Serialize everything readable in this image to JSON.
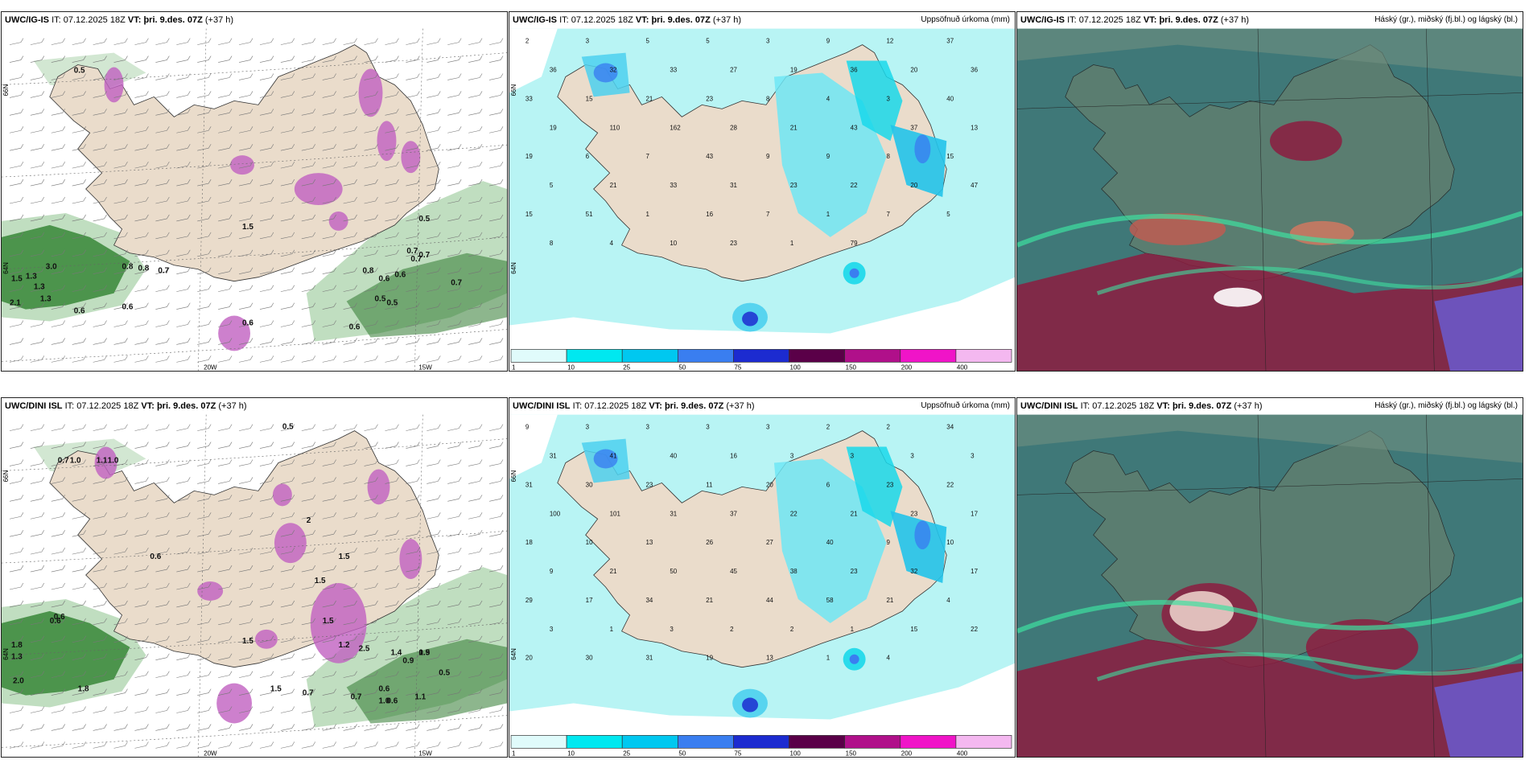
{
  "panels": [
    {
      "header": {
        "model": "UWC/IG-IS",
        "it_label": "IT:",
        "it": "07.12.2025 18Z",
        "vt_label": "VT:",
        "vt": "þri. 9.des. 07Z",
        "lead": "(+37 h)",
        "right": ""
      },
      "axis": {
        "lat_top": "66N",
        "lat_bottom": "64N",
        "lon_a": "20W",
        "lon_b": "15W"
      },
      "labels": [
        "0.5",
        "3.0",
        "1.5",
        "1.3",
        "1.3",
        "1.3",
        "0.8",
        "0.8",
        "0.7",
        "0.6",
        "2.1",
        "0.6",
        "0.7",
        "0.8",
        "0.6",
        "0.5",
        "0.7",
        "0.7",
        "0.6",
        "0.5",
        "0.6",
        "1.5",
        "0.6",
        "0.5",
        "0.7"
      ]
    },
    {
      "header": {
        "model": "UWC/IG-IS",
        "it_label": "IT:",
        "it": "07.12.2025 18Z",
        "vt_label": "VT:",
        "vt": "þri. 9.des. 07Z",
        "lead": "(+37 h)",
        "right": "Uppsöfnuð úrkoma (mm)"
      },
      "axis": {
        "lat_top": "66N",
        "lat_bottom": "64N"
      },
      "labels": [
        "2",
        "3",
        "5",
        "5",
        "3",
        "9",
        "12",
        "37",
        "36",
        "32",
        "33",
        "27",
        "19",
        "36",
        "20",
        "36",
        "33",
        "15",
        "21",
        "23",
        "8",
        "4",
        "3",
        "40",
        "19",
        "110",
        "162",
        "28",
        "21",
        "43",
        "37",
        "13",
        "19",
        "6",
        "7",
        "43",
        "9",
        "9",
        "8",
        "15",
        "5",
        "21",
        "33",
        "31",
        "23",
        "22",
        "20",
        "47",
        "15",
        "51",
        "1",
        "16",
        "7",
        "1",
        "7",
        "5",
        "8",
        "4",
        "10",
        "23",
        "1",
        "79"
      ]
    },
    {
      "header": {
        "model": "UWC/IG-IS",
        "it_label": "IT:",
        "it": "07.12.2025 18Z",
        "vt_label": "VT:",
        "vt": "þri. 9.des. 07Z",
        "lead": "(+37 h)",
        "right": "Háský (gr.), miðský (fj.bl.) og lágský (bl.)"
      }
    },
    {
      "header": {
        "model": "UWC/DINI ISL",
        "it_label": "IT:",
        "it": "07.12.2025 18Z",
        "vt_label": "VT:",
        "vt": "þri. 9.des. 07Z",
        "lead": "(+37 h)",
        "right": ""
      },
      "axis": {
        "lat_top": "66N",
        "lat_bottom": "64N",
        "lon_a": "20W",
        "lon_b": "15W"
      },
      "labels": [
        "0.5",
        "0.7",
        "1.0",
        "1.1",
        "1.0",
        "0.6",
        "0.6",
        "1.8",
        "1.3",
        "2.0",
        "1.8",
        "0.6",
        "1.5",
        "1.5",
        "2",
        "1.5",
        "0.9",
        "0.9",
        "0.6",
        "0.6",
        "0.5",
        "1.4",
        "2.5",
        "1.5",
        "0.7",
        "0.7",
        "1.0",
        "1.1",
        "1.5",
        "1.5",
        "1.2"
      ]
    },
    {
      "header": {
        "model": "UWC/DINI ISL",
        "it_label": "IT:",
        "it": "07.12.2025 18Z",
        "vt_label": "VT:",
        "vt": "þri. 9.des. 07Z",
        "lead": "(+37 h)",
        "right": "Uppsöfnuð úrkoma (mm)"
      },
      "axis": {
        "lat_top": "66N",
        "lat_bottom": "64N"
      },
      "labels": [
        "9",
        "3",
        "3",
        "3",
        "3",
        "2",
        "2",
        "34",
        "31",
        "41",
        "40",
        "16",
        "3",
        "3",
        "3",
        "3",
        "31",
        "30",
        "23",
        "11",
        "20",
        "6",
        "23",
        "22",
        "100",
        "101",
        "31",
        "37",
        "22",
        "21",
        "23",
        "17",
        "18",
        "10",
        "13",
        "26",
        "27",
        "40",
        "9",
        "10",
        "9",
        "21",
        "50",
        "45",
        "38",
        "23",
        "32",
        "17",
        "29",
        "17",
        "34",
        "21",
        "44",
        "58",
        "21",
        "4",
        "3",
        "1",
        "3",
        "2",
        "2",
        "1",
        "15",
        "22",
        "20",
        "30",
        "31",
        "19",
        "13",
        "1",
        "4"
      ]
    },
    {
      "header": {
        "model": "UWC/DINI ISL",
        "it_label": "IT:",
        "it": "07.12.2025 18Z",
        "vt_label": "VT:",
        "vt": "þri. 9.des. 07Z",
        "lead": "(+37 h)",
        "right": "Háský (gr.), miðský (fj.bl.) og lágský (bl.)"
      }
    }
  ],
  "legend": {
    "ticks": [
      "1",
      "10",
      "25",
      "50",
      "75",
      "100",
      "150",
      "200",
      "400"
    ],
    "colors": [
      "#e0fbfb",
      "#00e8f0",
      "#00c8f0",
      "#3a7ef0",
      "#1c2bd0",
      "#5a0048",
      "#b0108a",
      "#f014c8",
      "#f4b8f0"
    ]
  },
  "colors": {
    "land": "#eadccb",
    "sea_bg": "#ffffff",
    "precip_light": "#b8f4f4",
    "cloud_sea": "#3f7878",
    "cloud_land": "#5e7e70",
    "green": "#4aa04a",
    "purple": "#c060c0",
    "red": "#8c1c40"
  }
}
